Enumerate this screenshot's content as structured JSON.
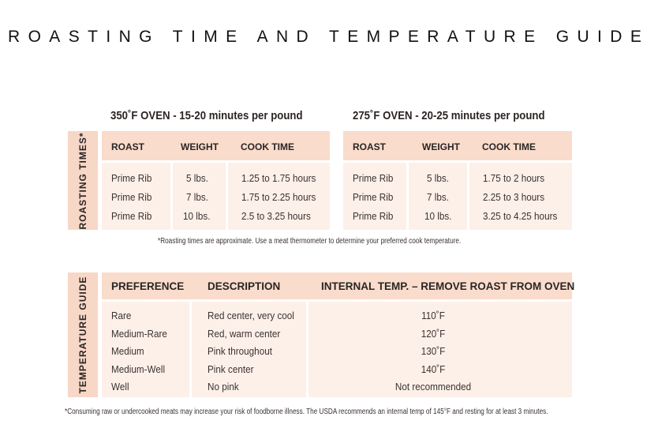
{
  "title": "ROASTING TIME AND TEMPERATURE GUIDE",
  "roasting": {
    "sidebar_label": "ROASTING TIMES*",
    "ovens": [
      {
        "heading": "350˚F OVEN - 15-20 minutes per pound",
        "columns": [
          "ROAST",
          "WEIGHT",
          "COOK TIME"
        ],
        "rows": [
          [
            "Prime Rib",
            "5 lbs.",
            "1.25 to 1.75 hours"
          ],
          [
            "Prime Rib",
            "7 lbs.",
            "1.75 to 2.25 hours"
          ],
          [
            "Prime Rib",
            "10 lbs.",
            "2.5 to 3.25 hours"
          ]
        ]
      },
      {
        "heading": "275˚F OVEN - 20-25 minutes per pound",
        "columns": [
          "ROAST",
          "WEIGHT",
          "COOK TIME"
        ],
        "rows": [
          [
            "Prime Rib",
            "5 lbs.",
            "1.75 to 2 hours"
          ],
          [
            "Prime Rib",
            "7 lbs.",
            "2.25 to 3 hours"
          ],
          [
            "Prime Rib",
            "10 lbs.",
            "3.25 to 4.25 hours"
          ]
        ]
      }
    ],
    "footnote": "*Roasting times are approximate. Use a meat thermometer to determine your preferred cook temperature."
  },
  "temperature": {
    "sidebar_label": "TEMPERATURE GUIDE",
    "columns": [
      "PREFERENCE",
      "DESCRIPTION",
      "INTERNAL TEMP. – REMOVE ROAST FROM OVEN"
    ],
    "rows": [
      [
        "Rare",
        "Red center, very cool",
        "110˚F"
      ],
      [
        "Medium-Rare",
        "Red, warm center",
        "120˚F"
      ],
      [
        "Medium",
        "Pink throughout",
        "130˚F"
      ],
      [
        "Medium-Well",
        "Pink center",
        "140˚F"
      ],
      [
        "Well",
        "No pink",
        "Not recommended"
      ]
    ],
    "footnote": "*Consuming raw or undercooked meats may increase your risk of foodborne illness. The USDA recommends an internal temp of 145°F and resting for at least 3 minutes."
  },
  "colors": {
    "header_fill": "#f9dccc",
    "body_fill": "#fdf0e9",
    "sidebar_fill": "#f7d7c6"
  }
}
